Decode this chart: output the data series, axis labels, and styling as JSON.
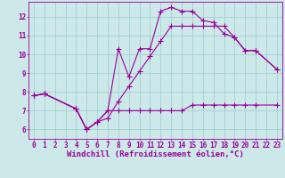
{
  "background_color": "#cce8e8",
  "grid_color": "#99cccc",
  "line_color": "#990099",
  "markersize": 2.5,
  "linewidth": 0.8,
  "xlabel": "Windchill (Refroidissement éolien,°C)",
  "xlabel_fontsize": 6.5,
  "tick_fontsize": 5.5,
  "xlim": [
    -0.5,
    23.5
  ],
  "ylim": [
    5.5,
    12.8
  ],
  "yticks": [
    6,
    7,
    8,
    9,
    10,
    11,
    12
  ],
  "xticks": [
    0,
    1,
    2,
    3,
    4,
    5,
    6,
    7,
    8,
    9,
    10,
    11,
    12,
    13,
    14,
    15,
    16,
    17,
    18,
    19,
    20,
    21,
    22,
    23
  ],
  "series": [
    {
      "x": [
        0,
        1,
        4,
        5,
        6,
        7,
        8,
        9,
        10,
        11,
        12,
        13,
        14,
        15,
        16,
        17,
        18,
        19,
        20,
        21,
        23
      ],
      "y": [
        7.8,
        7.9,
        7.1,
        6.0,
        6.4,
        7.0,
        10.3,
        8.8,
        10.3,
        10.3,
        12.3,
        12.5,
        12.3,
        12.3,
        11.8,
        11.7,
        11.1,
        10.9,
        10.2,
        10.2,
        9.2
      ]
    },
    {
      "x": [
        0,
        1,
        4,
        5,
        6,
        7,
        8,
        9,
        10,
        11,
        12,
        13,
        14,
        15,
        16,
        17,
        18,
        19,
        20,
        21,
        23
      ],
      "y": [
        7.8,
        7.9,
        7.1,
        6.0,
        6.4,
        7.0,
        7.0,
        7.0,
        7.0,
        7.0,
        7.0,
        7.0,
        7.0,
        7.3,
        7.3,
        7.3,
        7.3,
        7.3,
        7.3,
        7.3,
        7.3
      ]
    },
    {
      "x": [
        0,
        1,
        4,
        5,
        6,
        7,
        8,
        9,
        10,
        11,
        12,
        13,
        14,
        15,
        16,
        17,
        18,
        19,
        20,
        21,
        23
      ],
      "y": [
        7.8,
        7.9,
        7.1,
        6.0,
        6.4,
        6.6,
        7.5,
        8.3,
        9.1,
        9.9,
        10.7,
        11.5,
        11.5,
        11.5,
        11.5,
        11.5,
        11.5,
        10.9,
        10.2,
        10.2,
        9.2
      ]
    }
  ]
}
